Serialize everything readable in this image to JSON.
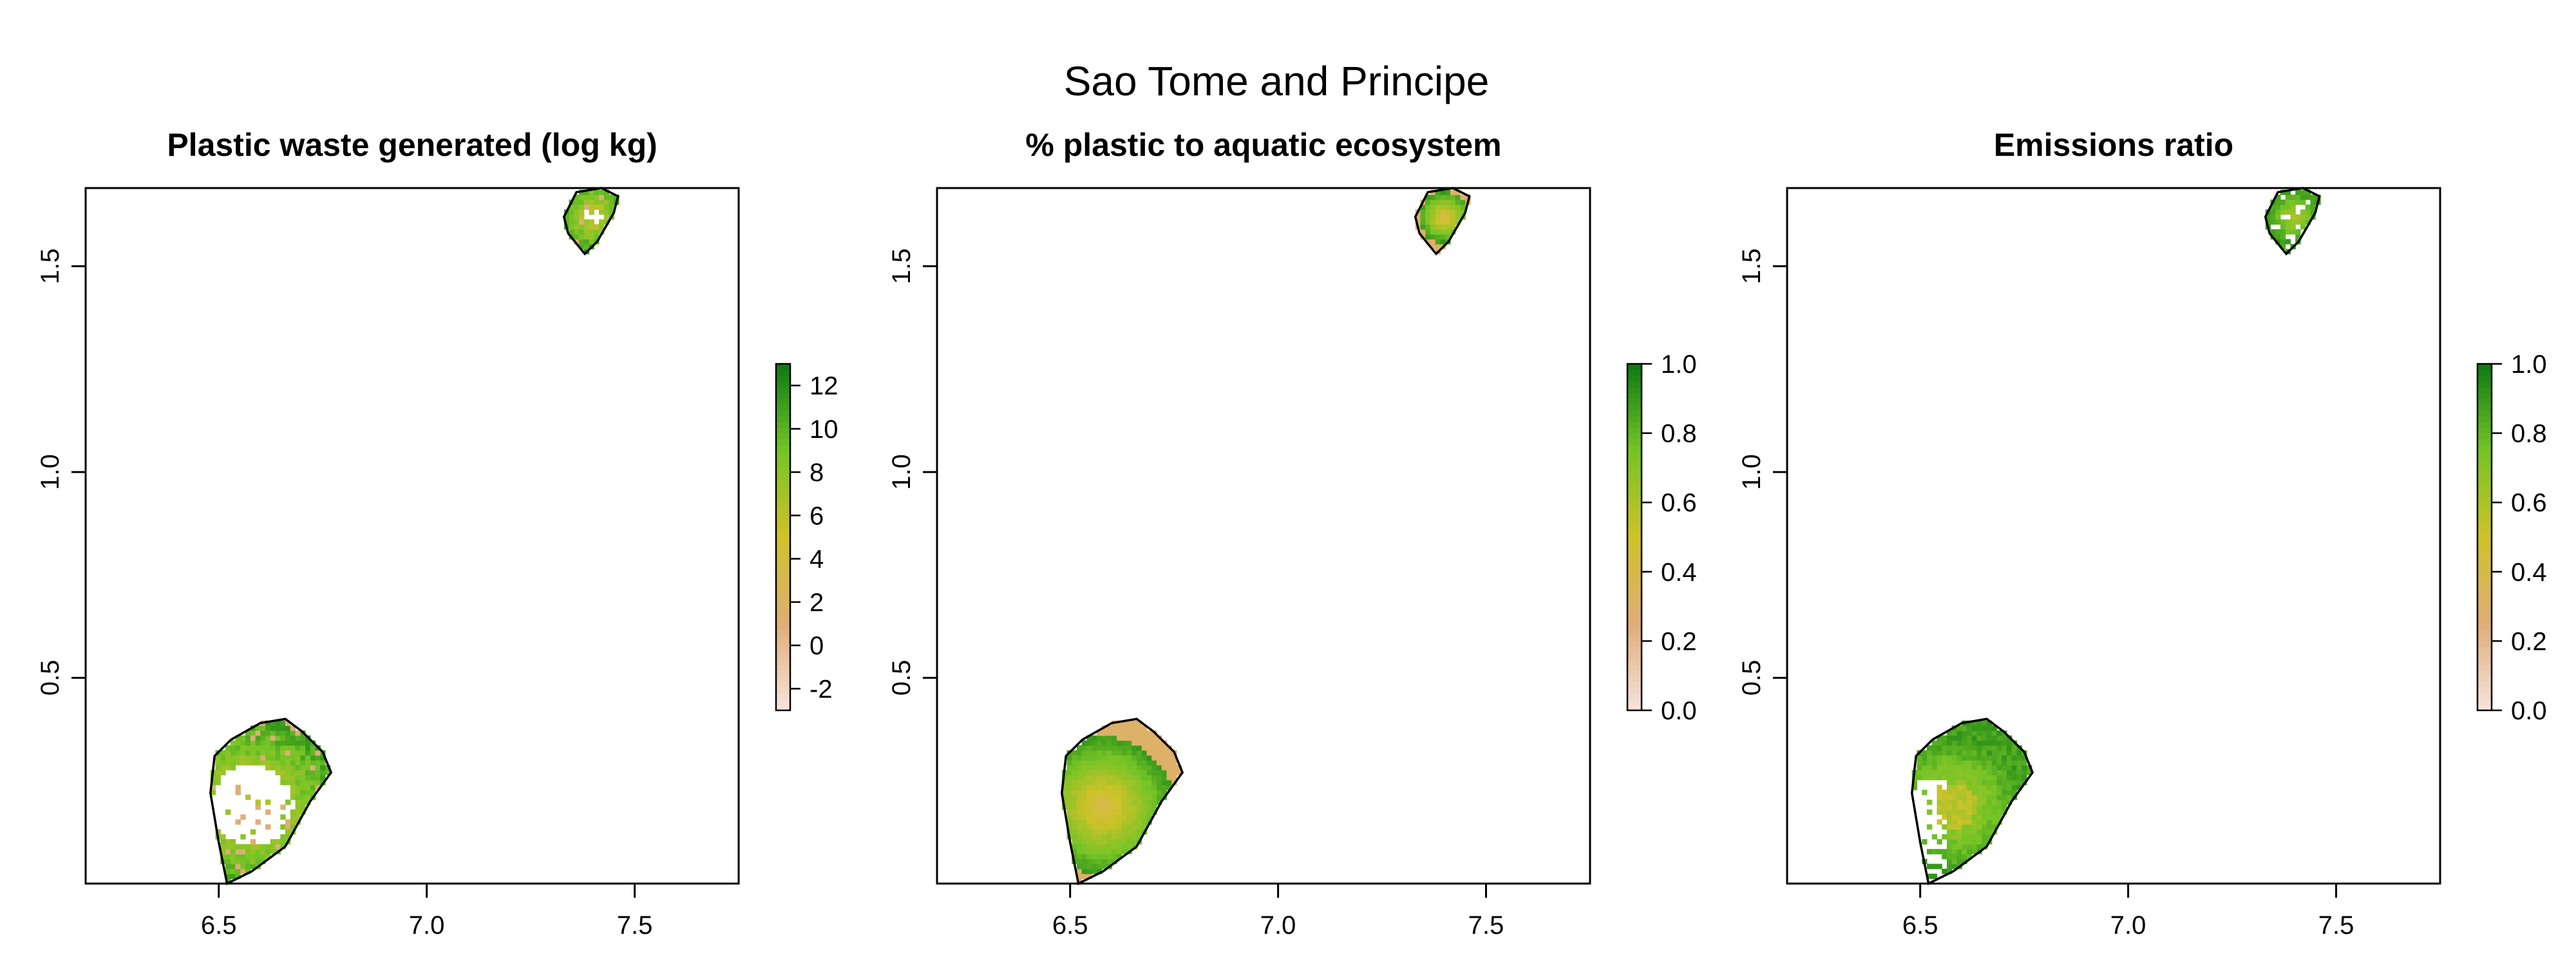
{
  "main_title": "Sao Tome and Principe",
  "colors": {
    "scale_low": "#f6e4de",
    "scale_mid_low": "#e0ad78",
    "scale_mid": "#cfc22a",
    "scale_mid_high": "#75c426",
    "scale_high": "#0d7a13",
    "outline": "#000000"
  },
  "chart_data": [
    {
      "type": "heatmap",
      "title": "Plastic waste generated (log kg)",
      "xlabel": "",
      "ylabel": "",
      "xlim": [
        6.18,
        7.75
      ],
      "ylim": [
        0.0,
        1.69
      ],
      "xticks": [
        "6.5",
        "7.0",
        "7.5"
      ],
      "yticks": [
        "0.5",
        "1.0",
        "1.5"
      ],
      "legend": {
        "placement": "right",
        "min": -3,
        "max": 13,
        "ticks": [
          "-2",
          "0",
          "2",
          "4",
          "6",
          "8",
          "10",
          "12"
        ]
      },
      "pattern": "waste",
      "islands": [
        {
          "name": "",
          "outline": [
            [
              6.52,
              0.0
            ],
            [
              6.58,
              0.03
            ],
            [
              6.66,
              0.09
            ],
            [
              6.72,
              0.2
            ],
            [
              6.77,
              0.27
            ],
            [
              6.75,
              0.32
            ],
            [
              6.7,
              0.37
            ],
            [
              6.66,
              0.4
            ],
            [
              6.6,
              0.39
            ],
            [
              6.53,
              0.35
            ],
            [
              6.49,
              0.31
            ],
            [
              6.48,
              0.22
            ],
            [
              6.5,
              0.1
            ]
          ]
        },
        {
          "name": "",
          "outline": [
            [
              7.38,
              1.53
            ],
            [
              7.41,
              1.56
            ],
            [
              7.45,
              1.63
            ],
            [
              7.46,
              1.67
            ],
            [
              7.42,
              1.69
            ],
            [
              7.36,
              1.68
            ],
            [
              7.33,
              1.62
            ],
            [
              7.34,
              1.58
            ]
          ]
        }
      ]
    },
    {
      "type": "heatmap",
      "title": "% plastic to aquatic ecosystem",
      "xlabel": "",
      "ylabel": "",
      "xlim": [
        6.18,
        7.75
      ],
      "ylim": [
        0.0,
        1.69
      ],
      "xticks": [
        "6.5",
        "7.0",
        "7.5"
      ],
      "yticks": [
        "0.5",
        "1.0",
        "1.5"
      ],
      "legend": {
        "placement": "right",
        "min": 0.0,
        "max": 1.0,
        "ticks": [
          "0.0",
          "0.2",
          "0.4",
          "0.6",
          "0.8",
          "1.0"
        ]
      },
      "pattern": "aquatic",
      "islands": [
        {
          "name": "",
          "outline": [
            [
              6.52,
              0.0
            ],
            [
              6.58,
              0.03
            ],
            [
              6.66,
              0.09
            ],
            [
              6.72,
              0.2
            ],
            [
              6.77,
              0.27
            ],
            [
              6.75,
              0.32
            ],
            [
              6.7,
              0.37
            ],
            [
              6.66,
              0.4
            ],
            [
              6.6,
              0.39
            ],
            [
              6.53,
              0.35
            ],
            [
              6.49,
              0.31
            ],
            [
              6.48,
              0.22
            ],
            [
              6.5,
              0.1
            ]
          ]
        },
        {
          "name": "",
          "outline": [
            [
              7.38,
              1.53
            ],
            [
              7.41,
              1.56
            ],
            [
              7.45,
              1.63
            ],
            [
              7.46,
              1.67
            ],
            [
              7.42,
              1.69
            ],
            [
              7.36,
              1.68
            ],
            [
              7.33,
              1.62
            ],
            [
              7.34,
              1.58
            ]
          ]
        }
      ]
    },
    {
      "type": "heatmap",
      "title": "Emissions ratio",
      "xlabel": "",
      "ylabel": "",
      "xlim": [
        6.18,
        7.75
      ],
      "ylim": [
        0.0,
        1.69
      ],
      "xticks": [
        "6.5",
        "7.0",
        "7.5"
      ],
      "yticks": [
        "0.5",
        "1.0",
        "1.5"
      ],
      "legend": {
        "placement": "right",
        "min": 0.0,
        "max": 1.0,
        "ticks": [
          "0.0",
          "0.2",
          "0.4",
          "0.6",
          "0.8",
          "1.0"
        ]
      },
      "pattern": "emissions",
      "islands": [
        {
          "name": "",
          "outline": [
            [
              6.52,
              0.0
            ],
            [
              6.58,
              0.03
            ],
            [
              6.66,
              0.09
            ],
            [
              6.72,
              0.2
            ],
            [
              6.77,
              0.27
            ],
            [
              6.75,
              0.32
            ],
            [
              6.7,
              0.37
            ],
            [
              6.66,
              0.4
            ],
            [
              6.6,
              0.39
            ],
            [
              6.53,
              0.35
            ],
            [
              6.49,
              0.31
            ],
            [
              6.48,
              0.22
            ],
            [
              6.5,
              0.1
            ]
          ]
        },
        {
          "name": "",
          "outline": [
            [
              7.38,
              1.53
            ],
            [
              7.41,
              1.56
            ],
            [
              7.45,
              1.63
            ],
            [
              7.46,
              1.67
            ],
            [
              7.42,
              1.69
            ],
            [
              7.36,
              1.68
            ],
            [
              7.33,
              1.62
            ],
            [
              7.34,
              1.58
            ]
          ]
        }
      ]
    }
  ]
}
